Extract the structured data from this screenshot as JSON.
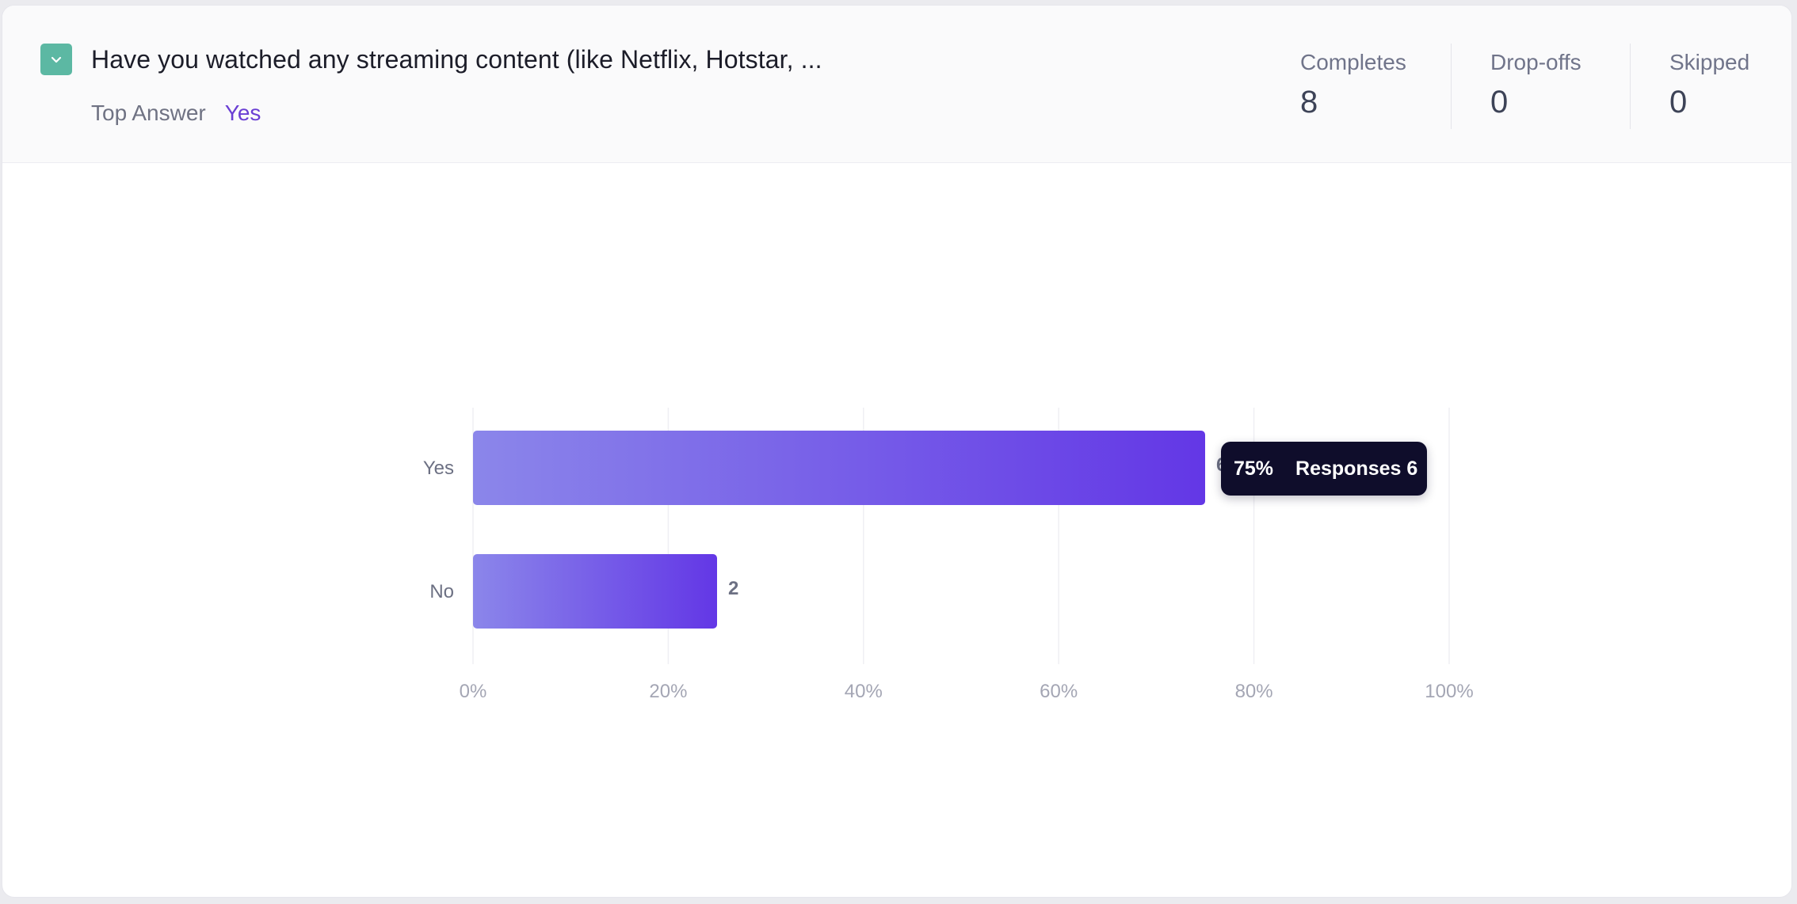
{
  "question": {
    "title": "Have you watched any streaming content (like Netflix, Hotstar, ...",
    "top_answer_label": "Top Answer",
    "top_answer_value": "Yes"
  },
  "stats": [
    {
      "label": "Completes",
      "value": "8"
    },
    {
      "label": "Drop-offs",
      "value": "0"
    },
    {
      "label": "Skipped",
      "value": "0"
    }
  ],
  "colors": {
    "toggle": "#5cb8a3",
    "bar_start": "#8b86ea",
    "bar_end": "#6337e6",
    "accent": "#6a3fd4",
    "tooltip_bg": "#0f0d2b"
  },
  "icons": {
    "toggle": "chevron-down-icon"
  },
  "tooltip": {
    "percent": "75%",
    "responses_text": "Responses 6"
  },
  "chart_data": {
    "type": "bar",
    "orientation": "horizontal",
    "categories": [
      "Yes",
      "No"
    ],
    "values": [
      75,
      25
    ],
    "value_labels": [
      "6",
      "2"
    ],
    "xlim": [
      0,
      100
    ],
    "x_ticks": [
      "0%",
      "20%",
      "40%",
      "60%",
      "80%",
      "100%"
    ],
    "grid": true
  }
}
